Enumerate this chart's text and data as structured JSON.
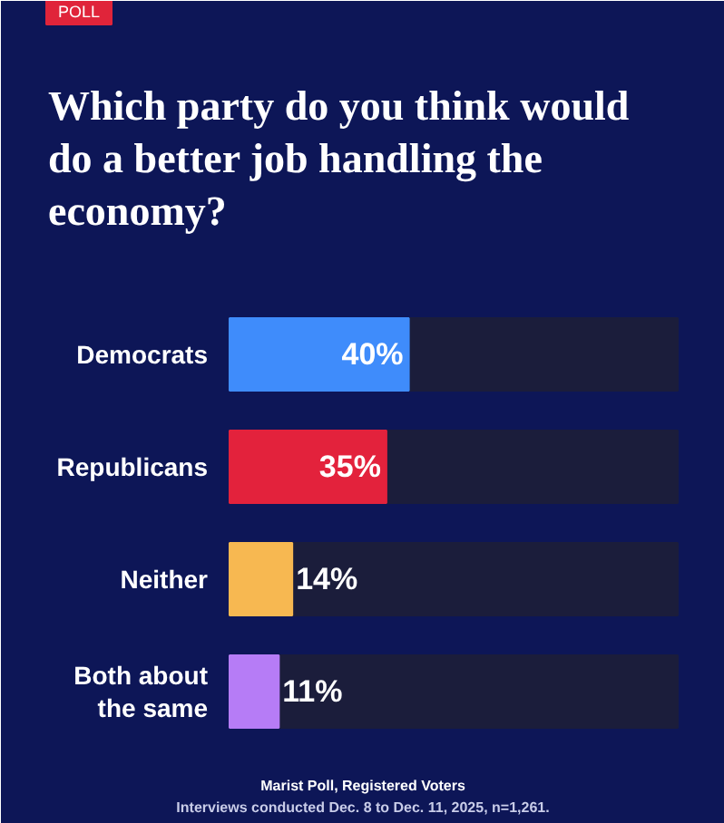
{
  "chart_data": {
    "type": "bar",
    "orientation": "horizontal",
    "title": "Which party do you think would do a better job handling the economy?",
    "categories": [
      "Democrats",
      "Republicans",
      "Neither",
      "Both about the same"
    ],
    "values": [
      40,
      35,
      14,
      11
    ],
    "colors": [
      "#3f8cfb",
      "#e3223c",
      "#f7b851",
      "#b67cf6"
    ],
    "value_labels": [
      "40%",
      "35%",
      "14%",
      "11%"
    ],
    "tick_labels": false,
    "annotations": [
      "POLL",
      "Marist Poll, Registered Voters",
      "Interviews conducted Dec. 8 to Dec. 11, 2025, n=1,261."
    ]
  }
}
